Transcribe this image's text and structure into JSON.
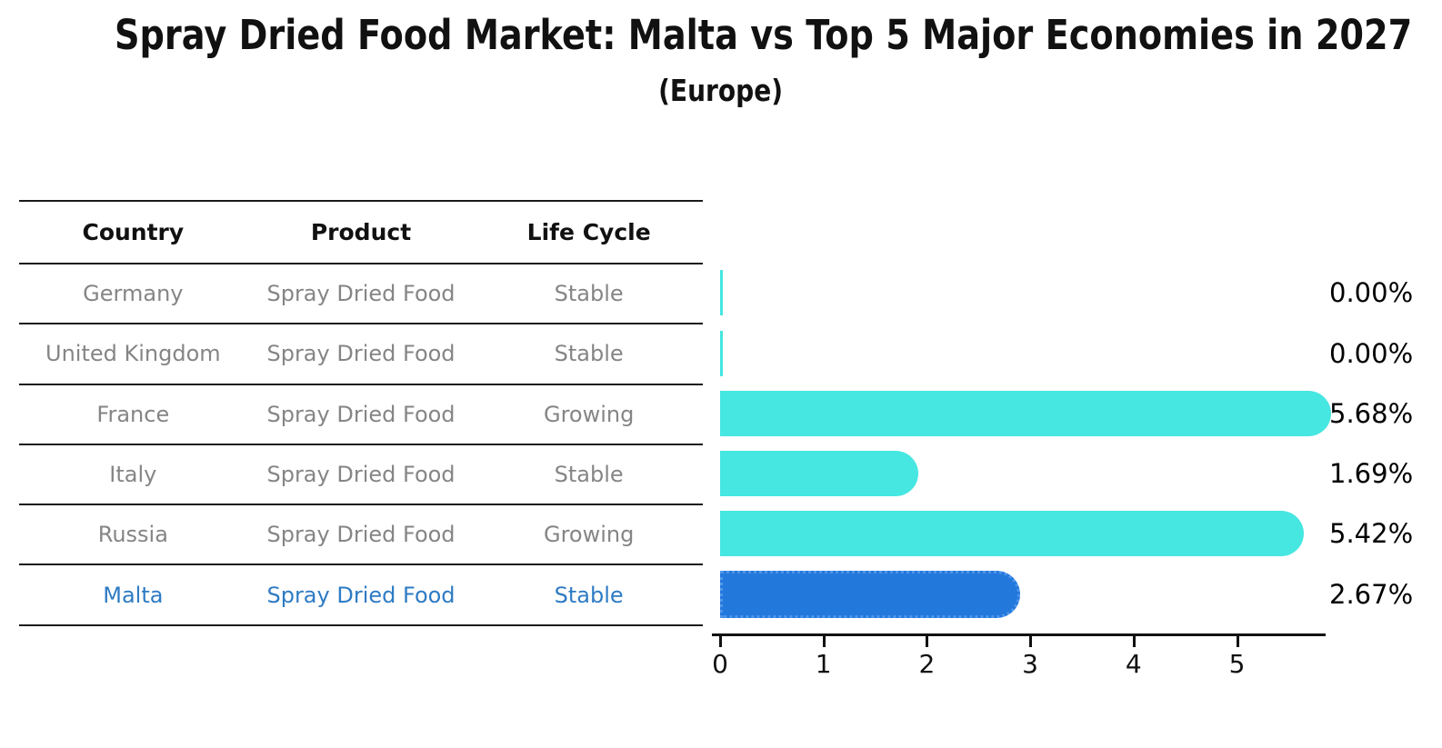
{
  "title": "Spray Dried Food Market: Malta vs Top 5 Major Economies in 2027",
  "subtitle": "(Europe)",
  "table": {
    "headers": [
      "Country",
      "Product",
      "Life Cycle"
    ],
    "rows": [
      {
        "country": "Germany",
        "product": "Spray Dried Food",
        "life_cycle": "Stable",
        "highlighted": false
      },
      {
        "country": "United Kingdom",
        "product": "Spray Dried Food",
        "life_cycle": "Stable",
        "highlighted": false
      },
      {
        "country": "France",
        "product": "Spray Dried Food",
        "life_cycle": "Growing",
        "highlighted": false
      },
      {
        "country": "Italy",
        "product": "Spray Dried Food",
        "life_cycle": "Stable",
        "highlighted": false
      },
      {
        "country": "Russia",
        "product": "Spray Dried Food",
        "life_cycle": "Growing",
        "highlighted": false
      },
      {
        "country": "Malta",
        "product": "Spray Dried Food",
        "life_cycle": "Stable",
        "highlighted": true
      }
    ]
  },
  "chart_data": {
    "type": "bar",
    "orientation": "horizontal",
    "title": "Spray Dried Food Market: Malta vs Top 5 Major Economies in 2027",
    "subtitle": "(Europe)",
    "categories": [
      "Germany",
      "United Kingdom",
      "France",
      "Italy",
      "Russia",
      "Malta"
    ],
    "values": [
      0.0,
      0.0,
      5.68,
      1.69,
      5.42,
      2.67
    ],
    "value_labels": [
      "0.00%",
      "0.00%",
      "5.68%",
      "1.69%",
      "5.42%",
      "2.67%"
    ],
    "x_ticks": [
      "0",
      "1",
      "2",
      "3",
      "4",
      "5"
    ],
    "xlim": [
      0,
      5.9
    ],
    "grid": false,
    "legend": false,
    "bar_color": "#46E6E1",
    "highlight_index": 5,
    "highlight_bar_color": "#2378DC",
    "highlight_bar_border_color": "#4E95E9",
    "highlight_text_color": "#2E7BC4",
    "axis_color": "#111111",
    "row_text_color": "#858585"
  }
}
